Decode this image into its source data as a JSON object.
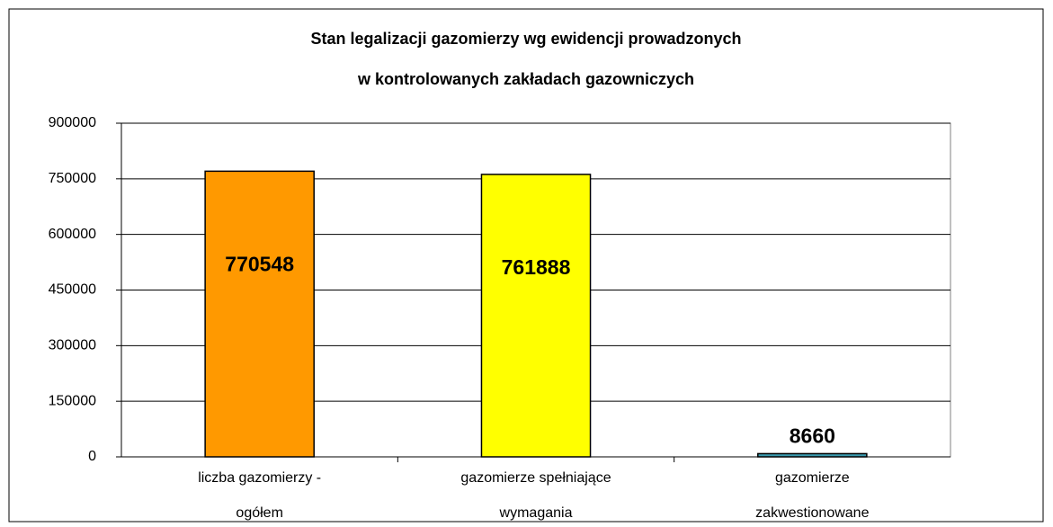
{
  "chart_data": {
    "type": "bar",
    "title": [
      "Stan legalizacji gazomierzy wg ewidencji prowadzonych",
      "w kontrolowanych zakładach gazowniczych"
    ],
    "categories": [
      [
        "liczba gazomierzy -",
        "ogółem"
      ],
      [
        "gazomierze spełniające",
        "wymagania"
      ],
      [
        "gazomierze",
        "zakwestionowane"
      ]
    ],
    "values": [
      770548,
      761888,
      8660
    ],
    "colors": [
      "#ff9900",
      "#ffff00",
      "#3a9bb0"
    ],
    "ylim": [
      0,
      900000
    ],
    "yticks": [
      0,
      150000,
      300000,
      450000,
      600000,
      750000,
      900000
    ],
    "grid": true
  }
}
